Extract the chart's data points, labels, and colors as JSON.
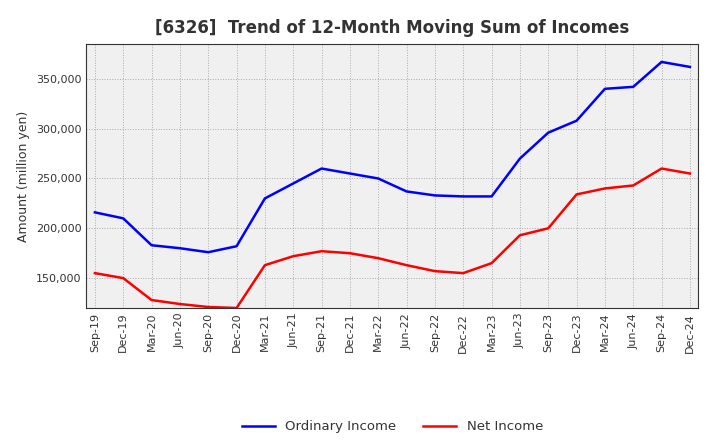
{
  "title": "[6326]  Trend of 12-Month Moving Sum of Incomes",
  "ylabel": "Amount (million yen)",
  "xlabels": [
    "Sep-19",
    "Dec-19",
    "Mar-20",
    "Jun-20",
    "Sep-20",
    "Dec-20",
    "Mar-21",
    "Jun-21",
    "Sep-21",
    "Dec-21",
    "Mar-22",
    "Jun-22",
    "Sep-22",
    "Dec-22",
    "Mar-23",
    "Jun-23",
    "Sep-23",
    "Dec-23",
    "Mar-24",
    "Jun-24",
    "Sep-24",
    "Dec-24"
  ],
  "ordinary_income": [
    216000,
    210000,
    183000,
    180000,
    176000,
    182000,
    230000,
    245000,
    260000,
    255000,
    250000,
    237000,
    233000,
    232000,
    232000,
    270000,
    296000,
    308000,
    340000,
    342000,
    367000,
    362000
  ],
  "net_income": [
    155000,
    150000,
    128000,
    124000,
    121000,
    120000,
    163000,
    172000,
    177000,
    175000,
    170000,
    163000,
    157000,
    155000,
    165000,
    193000,
    200000,
    234000,
    240000,
    243000,
    260000,
    255000
  ],
  "ordinary_color": "#0000ff",
  "net_color": "#ff0000",
  "ylim": [
    120000,
    385000
  ],
  "yticks": [
    150000,
    200000,
    250000,
    300000,
    350000
  ],
  "background_color": "#ffffff",
  "plot_bg_color": "#f0f0f0",
  "grid_color": "#999999",
  "title_fontsize": 12,
  "title_color": "#333333",
  "axis_fontsize": 9,
  "tick_fontsize": 8,
  "line_width": 1.8
}
